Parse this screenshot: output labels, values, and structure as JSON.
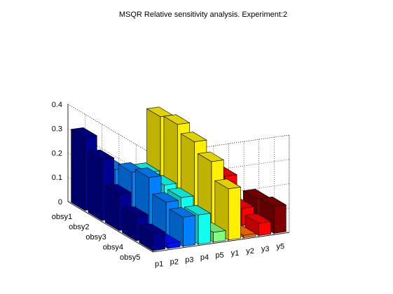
{
  "chart_data": {
    "type": "bar3",
    "title": "MSQR Relative sensitivity analysis. Experiment:2",
    "x_categories": [
      "p1",
      "p2",
      "p3",
      "p4",
      "p5",
      "y1",
      "y2",
      "y3",
      "y5"
    ],
    "y_categories": [
      "obsy1",
      "obsy2",
      "obsy3",
      "obsy4",
      "obsy5"
    ],
    "zlim": [
      0,
      0.4
    ],
    "z_ticks": [
      "0",
      "0.1",
      "0.2",
      "0.3",
      "0.4"
    ],
    "grid": true,
    "colormap": "jet",
    "column_colors": [
      "#00008f",
      "#0010ff",
      "#0080ff",
      "#10ffef",
      "#80ff80",
      "#ffef00",
      "#ff7000",
      "#ff0000",
      "#800000"
    ],
    "values": [
      [
        0.3,
        0.0,
        0.15,
        0.12,
        0.0,
        0.34,
        0.0,
        0.1,
        0.0
      ],
      [
        0.25,
        0.0,
        0.18,
        0.17,
        0.03,
        0.35,
        0.0,
        0.15,
        0.03
      ],
      [
        0.15,
        0.03,
        0.2,
        0.16,
        0.04,
        0.32,
        0.0,
        0.16,
        0.02
      ],
      [
        0.1,
        0.02,
        0.14,
        0.15,
        0.05,
        0.28,
        0.02,
        0.07,
        0.1
      ],
      [
        0.07,
        0.02,
        0.12,
        0.12,
        0.04,
        0.21,
        0.01,
        0.05,
        0.11
      ]
    ]
  }
}
